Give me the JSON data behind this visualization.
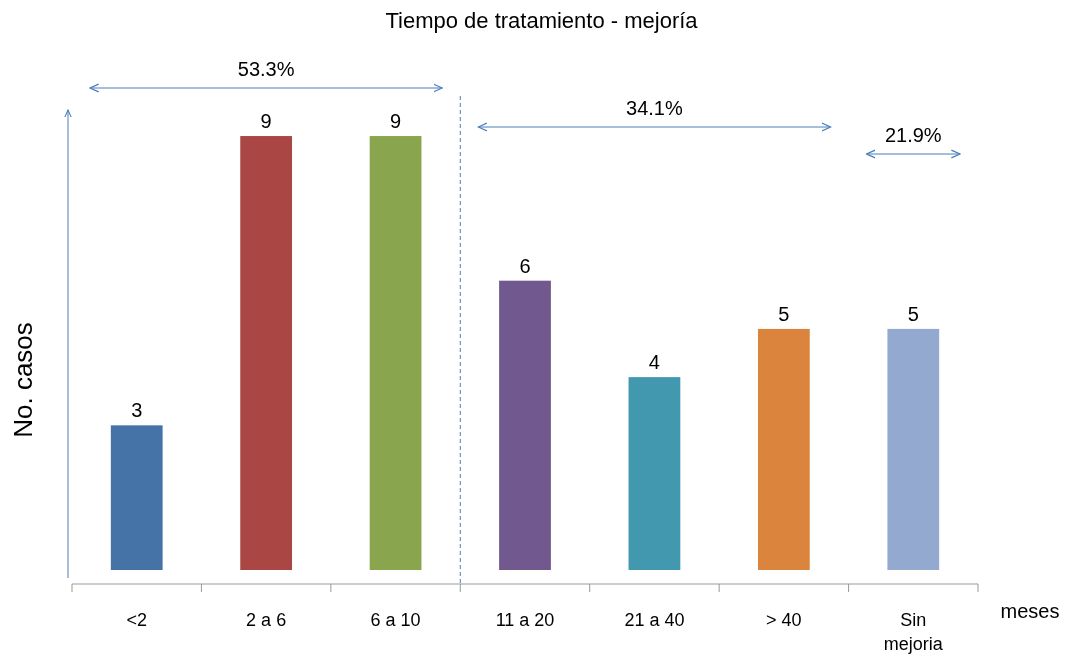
{
  "chart_data": {
    "type": "bar",
    "title": "Tiempo de tratamiento  -  mejoría",
    "xlabel": "meses",
    "ylabel": "No. casos",
    "categories": [
      "<2",
      "2 a 6",
      "6 a 10",
      "11 a 20",
      "21 a 40",
      "> 40",
      "Sin mejoria"
    ],
    "values": [
      3,
      9,
      9,
      6,
      4,
      5,
      5
    ],
    "colors": [
      "#4573a7",
      "#aa4643",
      "#89a54e",
      "#71588f",
      "#4198af",
      "#db843d",
      "#93a9cf"
    ],
    "data_labels": true,
    "annotations": [
      "53.3%",
      "34.1%",
      "21.9%"
    ]
  }
}
